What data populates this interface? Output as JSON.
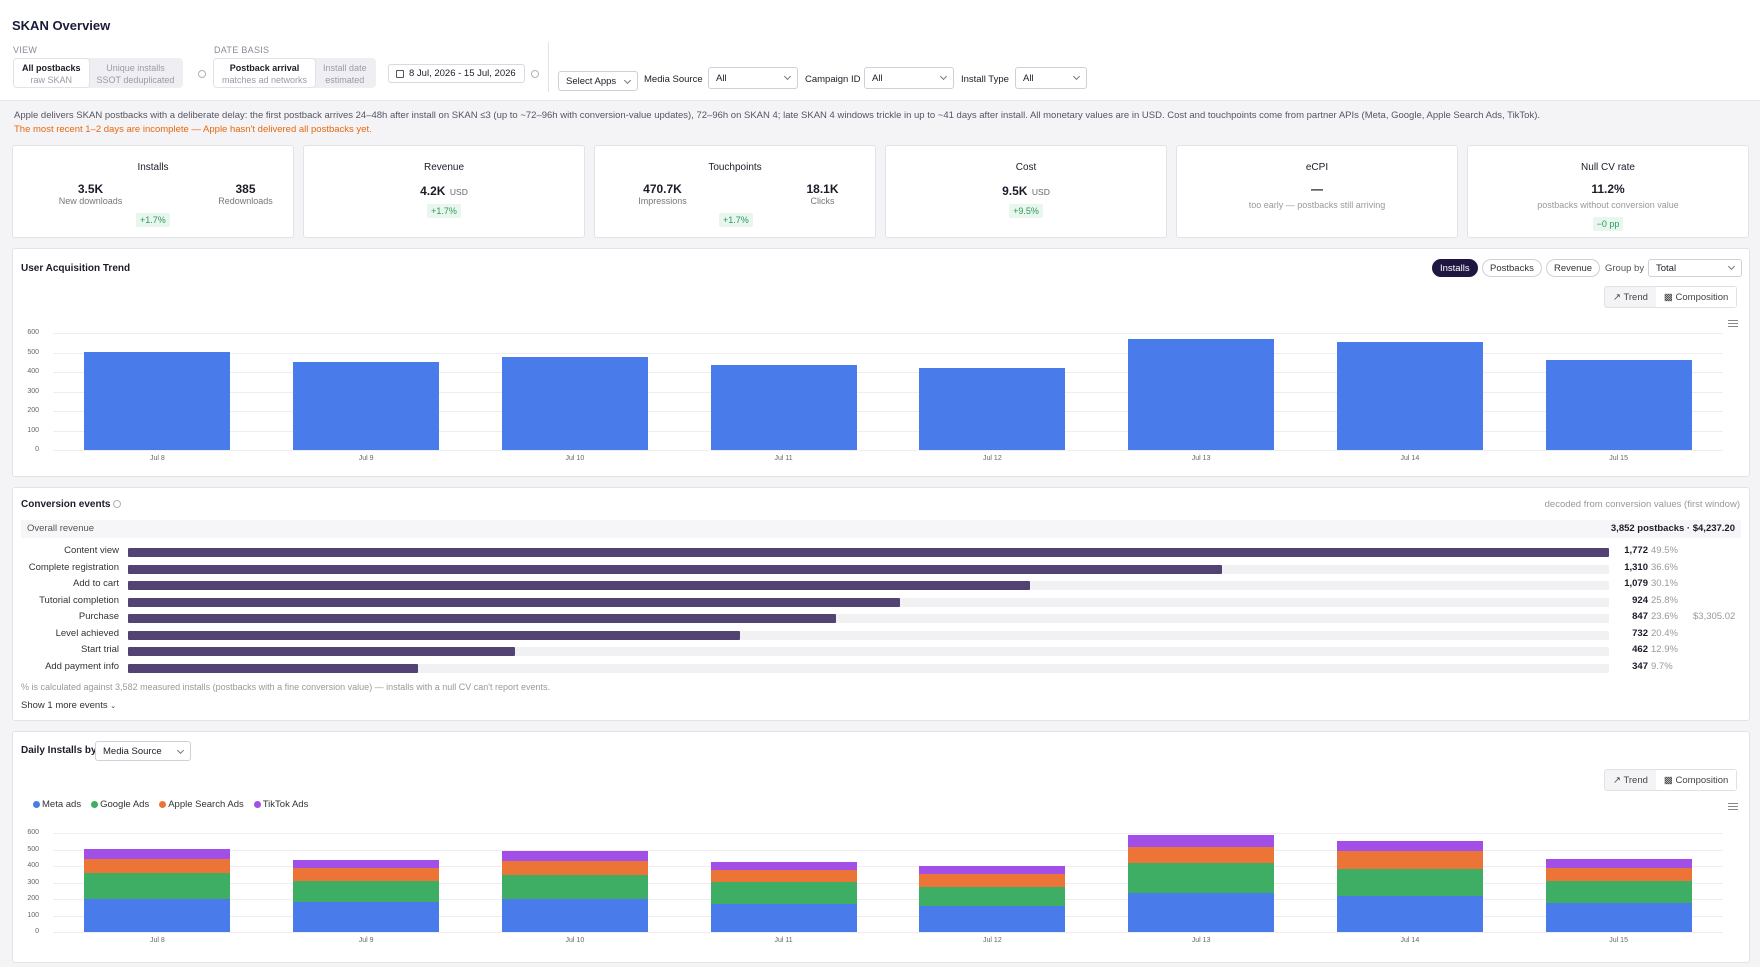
{
  "header": {
    "title": "SKAN Overview",
    "view_label": "VIEW",
    "view_options": [
      {
        "main": "All postbacks",
        "sub": "raw SKAN"
      },
      {
        "main": "Unique installs",
        "sub": "SSOT deduplicated"
      }
    ],
    "date_basis_label": "DATE BASIS",
    "date_basis_options": [
      {
        "main": "Postback arrival",
        "sub": "matches ad networks"
      },
      {
        "main": "Install date",
        "sub": "estimated"
      }
    ],
    "date_range": "8 Jul, 2026 - 15 Jul, 2026",
    "select_apps": "Select Apps",
    "media_source_label": "Media Source",
    "media_source_value": "All",
    "campaign_id_label": "Campaign ID",
    "campaign_id_value": "All",
    "install_type_label": "Install Type",
    "install_type_value": "All"
  },
  "notice": {
    "info": "Apple delivers SKAN postbacks with a deliberate delay: the first postback arrives 24–48h after install on SKAN ≤3 (up to ~72–96h with conversion-value updates), 72–96h on SKAN 4; late SKAN 4 windows trickle in up to ~41 days after install. All monetary values are in USD. Cost and touchpoints come from partner APIs (Meta, Google, Apple Search Ads, TikTok).",
    "warning": "The most recent 1–2 days are incomplete — Apple hasn't delivered all postbacks yet."
  },
  "kpis": {
    "installs": {
      "title": "Installs",
      "v1": "3.5K",
      "l1": "New downloads",
      "v2": "385",
      "l2": "Redownloads",
      "delta": "+1.7%"
    },
    "revenue": {
      "title": "Revenue",
      "value": "4.2K",
      "unit": "USD",
      "delta": "+1.7%"
    },
    "touchpoints": {
      "title": "Touchpoints",
      "v1": "470.7K",
      "l1": "Impressions",
      "v2": "18.1K",
      "l2": "Clicks",
      "delta": "+1.7%"
    },
    "cost": {
      "title": "Cost",
      "value": "9.5K",
      "unit": "USD",
      "delta": "+9.5%"
    },
    "ecpi": {
      "title": "eCPI",
      "value": "—",
      "note": "too early — postbacks still arriving"
    },
    "nullcv": {
      "title": "Null CV rate",
      "value": "11.2%",
      "note": "postbacks without conversion value",
      "delta": "−0 pp"
    }
  },
  "ua_panel": {
    "title": "User Acquisition Trend",
    "pills": [
      "Installs",
      "Postbacks",
      "Revenue"
    ],
    "group_by_label": "Group by",
    "group_by_value": "Total",
    "toggle": [
      "Trend",
      "Composition"
    ]
  },
  "chart_data": [
    {
      "type": "bar",
      "categories": [
        "Jul 8",
        "Jul 9",
        "Jul 10",
        "Jul 11",
        "Jul 12",
        "Jul 13",
        "Jul 14",
        "Jul 15"
      ],
      "values": [
        505,
        450,
        478,
        437,
        420,
        568,
        553,
        460
      ],
      "yticks": [
        0,
        100,
        200,
        300,
        400,
        500,
        600
      ],
      "ylim": [
        0,
        600
      ],
      "color": "#4a7bea"
    },
    {
      "type": "bar",
      "stacked": true,
      "categories": [
        "Jul 8",
        "Jul 9",
        "Jul 10",
        "Jul 11",
        "Jul 12",
        "Jul 13",
        "Jul 14",
        "Jul 15"
      ],
      "yticks": [
        0,
        100,
        200,
        300,
        400,
        500,
        600
      ],
      "ylim": [
        0,
        600
      ],
      "series": [
        {
          "name": "Meta ads",
          "color": "#4a7bea",
          "values": [
            200,
            180,
            198,
            168,
            160,
            238,
            218,
            178
          ]
        },
        {
          "name": "Google Ads",
          "color": "#3dae64",
          "values": [
            155,
            130,
            150,
            135,
            115,
            180,
            165,
            132
          ]
        },
        {
          "name": "Apple Search Ads",
          "color": "#ec7436",
          "values": [
            90,
            78,
            84,
            72,
            75,
            95,
            108,
            75
          ]
        },
        {
          "name": "TikTok Ads",
          "color": "#a14fe6",
          "values": [
            58,
            47,
            56,
            52,
            47,
            72,
            60,
            58
          ]
        }
      ]
    }
  ],
  "conversion": {
    "title": "Conversion events",
    "subtitle": "decoded from conversion values (first window)",
    "overall_label": "Overall revenue",
    "overall_value": "3,852 postbacks · $4,237.20",
    "events": [
      {
        "name": "Content view",
        "count": "1,772",
        "pct": "49.5%",
        "ratio": 1.0,
        "rev": ""
      },
      {
        "name": "Complete registration",
        "count": "1,310",
        "pct": "36.6%",
        "ratio": 0.739,
        "rev": ""
      },
      {
        "name": "Add to cart",
        "count": "1,079",
        "pct": "30.1%",
        "ratio": 0.609,
        "rev": ""
      },
      {
        "name": "Tutorial completion",
        "count": "924",
        "pct": "25.8%",
        "ratio": 0.521,
        "rev": ""
      },
      {
        "name": "Purchase",
        "count": "847",
        "pct": "23.6%",
        "ratio": 0.478,
        "rev": "$3,305.02"
      },
      {
        "name": "Level achieved",
        "count": "732",
        "pct": "20.4%",
        "ratio": 0.413,
        "rev": ""
      },
      {
        "name": "Start trial",
        "count": "462",
        "pct": "12.9%",
        "ratio": 0.261,
        "rev": ""
      },
      {
        "name": "Add payment info",
        "count": "347",
        "pct": "9.7%",
        "ratio": 0.196,
        "rev": ""
      }
    ],
    "footnote": "% is calculated against 3,582 measured installs (postbacks with a fine conversion value) — installs with a null CV can't report events.",
    "show_more": "Show 1 more events"
  },
  "daily_panel": {
    "title": "Daily Installs by",
    "dim_value": "Media Source",
    "toggle": [
      "Trend",
      "Composition"
    ]
  }
}
